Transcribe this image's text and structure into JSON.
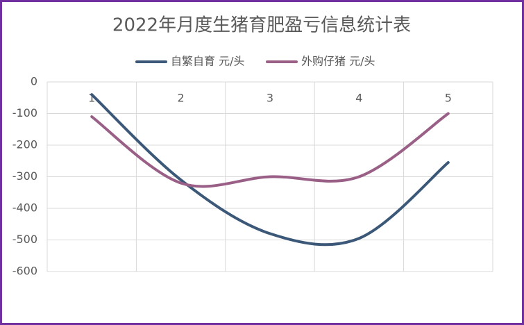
{
  "chart_data": {
    "type": "line",
    "title": "2022年月度生猪育肥盈亏信息统计表",
    "categories": [
      "1",
      "2",
      "3",
      "4",
      "5"
    ],
    "series": [
      {
        "name": "自繁自育 元/头",
        "color": "#3b5878",
        "values": [
          -40,
          -310,
          -480,
          -495,
          -255
        ]
      },
      {
        "name": "外购仔猪 元/头",
        "color": "#9a5f86",
        "values": [
          -110,
          -320,
          -300,
          -300,
          -100
        ]
      }
    ],
    "ylim": [
      -600,
      0
    ],
    "yticks": [
      -600,
      -500,
      -400,
      -300,
      -200,
      -100,
      0
    ],
    "grid": true,
    "legend": "top",
    "smooth": true
  }
}
